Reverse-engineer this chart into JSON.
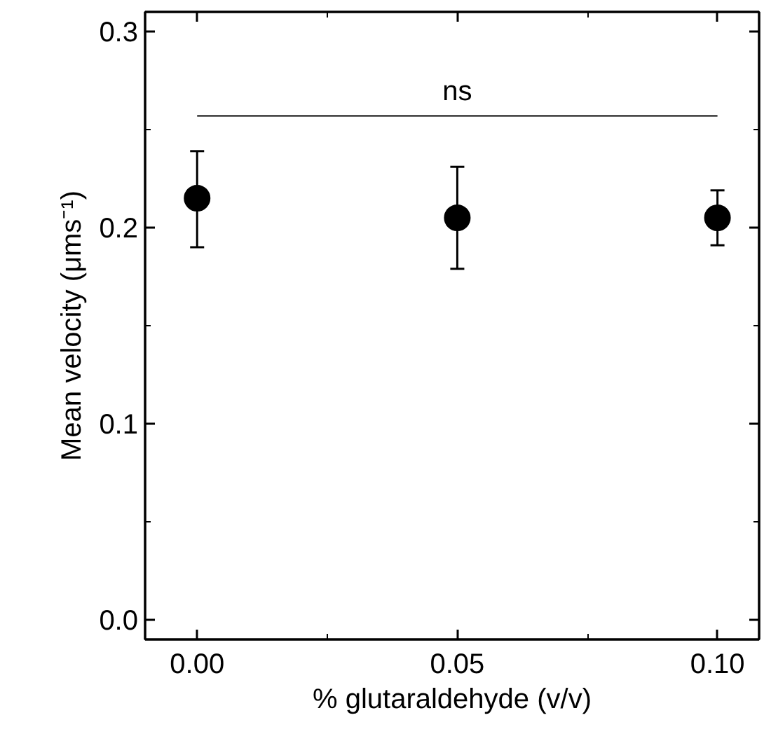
{
  "chart_data": {
    "type": "scatter",
    "xlabel": "% glutaraldehyde (v/v)",
    "ylabel": "Mean velocity (μms⁻¹)",
    "x": [
      0.0,
      0.05,
      0.1
    ],
    "series": [
      {
        "color": "#000000",
        "marker": "circle",
        "values": [
          0.215,
          0.205,
          0.205
        ],
        "errors": [
          [
            0.19,
            0.239
          ],
          [
            0.179,
            0.231
          ],
          [
            0.191,
            0.219
          ]
        ]
      },
      {
        "type": "line",
        "color": "#000000",
        "x": [
          0.0,
          0.1
        ],
        "values": [
          0.257,
          0.257
        ]
      }
    ],
    "annotations": [
      "ns"
    ],
    "xlim": [
      -0.01,
      0.108
    ],
    "ylim": [
      -0.01,
      0.31
    ],
    "xticks": [
      {
        "value": 0.0,
        "label": "0.00"
      },
      {
        "value": 0.05,
        "label": "0.05"
      },
      {
        "value": 0.1,
        "label": "0.10"
      }
    ],
    "yticks": [
      {
        "value": 0.0,
        "label": "0.0"
      },
      {
        "value": 0.1,
        "label": "0.1"
      },
      {
        "value": 0.2,
        "label": "0.2"
      },
      {
        "value": 0.3,
        "label": "0.3"
      }
    ],
    "grid": false
  }
}
